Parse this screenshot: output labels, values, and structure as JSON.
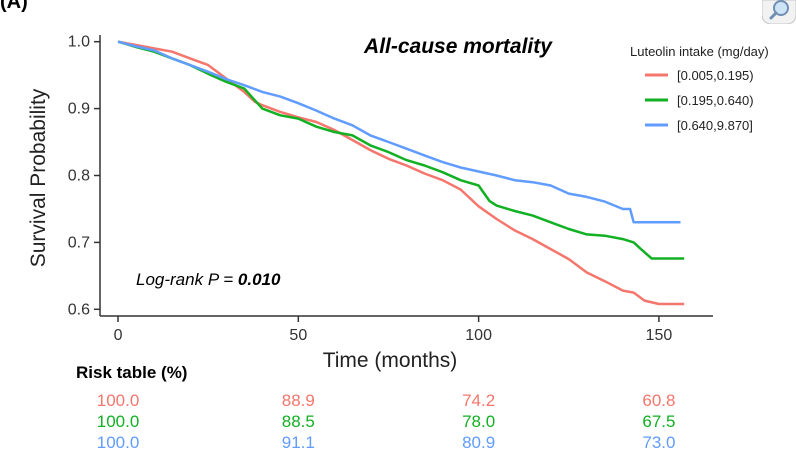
{
  "panel_tag": "(A)",
  "annotation": {
    "prefix": "Log-rank P = ",
    "value": "0.010"
  },
  "risk_table": {
    "title": "Risk table (%)",
    "rows": [
      {
        "color": "#f4766c",
        "values": [
          "100.0",
          "88.9",
          "74.2",
          "60.8"
        ]
      },
      {
        "color": "#12b023",
        "values": [
          "100.0",
          "88.5",
          "78.0",
          "67.5"
        ]
      },
      {
        "color": "#619cff",
        "values": [
          "100.0",
          "91.1",
          "80.9",
          "73.0"
        ]
      }
    ]
  },
  "chart_data": {
    "type": "line",
    "title": "All-cause mortality",
    "xlabel": "Time (months)",
    "ylabel": "Survival Probability",
    "xlim": [
      -5,
      165
    ],
    "ylim": [
      0.59,
      1.01
    ],
    "xticks": [
      0,
      50,
      100,
      150
    ],
    "yticks": [
      0.6,
      0.7,
      0.8,
      0.9,
      1.0
    ],
    "ytick_labels": [
      "0.6",
      "0.7",
      "0.8",
      "0.9",
      "1.0"
    ],
    "grid": false,
    "legend": {
      "title": "Luteolin intake (mg/day)",
      "position": "top-right"
    },
    "series": [
      {
        "name": "[0.005,0.195)",
        "color": "#f4766c",
        "points": [
          [
            0,
            1.0
          ],
          [
            5,
            0.995
          ],
          [
            10,
            0.99
          ],
          [
            15,
            0.985
          ],
          [
            20,
            0.975
          ],
          [
            25,
            0.965
          ],
          [
            30,
            0.945
          ],
          [
            35,
            0.925
          ],
          [
            38,
            0.91
          ],
          [
            40,
            0.905
          ],
          [
            45,
            0.895
          ],
          [
            50,
            0.887
          ],
          [
            55,
            0.88
          ],
          [
            60,
            0.868
          ],
          [
            65,
            0.853
          ],
          [
            70,
            0.838
          ],
          [
            75,
            0.825
          ],
          [
            80,
            0.815
          ],
          [
            85,
            0.803
          ],
          [
            90,
            0.793
          ],
          [
            95,
            0.779
          ],
          [
            100,
            0.754
          ],
          [
            105,
            0.735
          ],
          [
            110,
            0.718
          ],
          [
            115,
            0.705
          ],
          [
            120,
            0.69
          ],
          [
            125,
            0.675
          ],
          [
            130,
            0.655
          ],
          [
            135,
            0.642
          ],
          [
            140,
            0.628
          ],
          [
            143,
            0.625
          ],
          [
            146,
            0.613
          ],
          [
            150,
            0.608
          ],
          [
            157,
            0.608
          ]
        ]
      },
      {
        "name": "[0.195,0.640)",
        "color": "#12b023",
        "points": [
          [
            0,
            1.0
          ],
          [
            5,
            0.992
          ],
          [
            10,
            0.985
          ],
          [
            15,
            0.975
          ],
          [
            20,
            0.965
          ],
          [
            25,
            0.952
          ],
          [
            30,
            0.94
          ],
          [
            35,
            0.93
          ],
          [
            40,
            0.9
          ],
          [
            45,
            0.89
          ],
          [
            50,
            0.885
          ],
          [
            55,
            0.873
          ],
          [
            60,
            0.865
          ],
          [
            65,
            0.86
          ],
          [
            70,
            0.845
          ],
          [
            75,
            0.835
          ],
          [
            80,
            0.823
          ],
          [
            85,
            0.815
          ],
          [
            90,
            0.805
          ],
          [
            95,
            0.793
          ],
          [
            100,
            0.785
          ],
          [
            103,
            0.762
          ],
          [
            105,
            0.755
          ],
          [
            110,
            0.747
          ],
          [
            115,
            0.74
          ],
          [
            120,
            0.73
          ],
          [
            125,
            0.72
          ],
          [
            130,
            0.712
          ],
          [
            135,
            0.71
          ],
          [
            140,
            0.705
          ],
          [
            143,
            0.7
          ],
          [
            145,
            0.69
          ],
          [
            148,
            0.676
          ],
          [
            150,
            0.676
          ],
          [
            157,
            0.676
          ]
        ]
      },
      {
        "name": "[0.640,9.870]",
        "color": "#619cff",
        "points": [
          [
            0,
            1.0
          ],
          [
            5,
            0.993
          ],
          [
            10,
            0.987
          ],
          [
            15,
            0.975
          ],
          [
            20,
            0.965
          ],
          [
            25,
            0.955
          ],
          [
            30,
            0.944
          ],
          [
            35,
            0.935
          ],
          [
            40,
            0.925
          ],
          [
            45,
            0.918
          ],
          [
            50,
            0.908
          ],
          [
            55,
            0.897
          ],
          [
            60,
            0.885
          ],
          [
            65,
            0.875
          ],
          [
            70,
            0.86
          ],
          [
            75,
            0.85
          ],
          [
            80,
            0.84
          ],
          [
            85,
            0.83
          ],
          [
            90,
            0.82
          ],
          [
            95,
            0.812
          ],
          [
            100,
            0.806
          ],
          [
            105,
            0.8
          ],
          [
            110,
            0.793
          ],
          [
            115,
            0.79
          ],
          [
            120,
            0.785
          ],
          [
            125,
            0.773
          ],
          [
            130,
            0.768
          ],
          [
            135,
            0.761
          ],
          [
            140,
            0.75
          ],
          [
            142,
            0.75
          ],
          [
            143,
            0.73
          ],
          [
            150,
            0.73
          ],
          [
            156,
            0.73
          ]
        ]
      }
    ]
  }
}
